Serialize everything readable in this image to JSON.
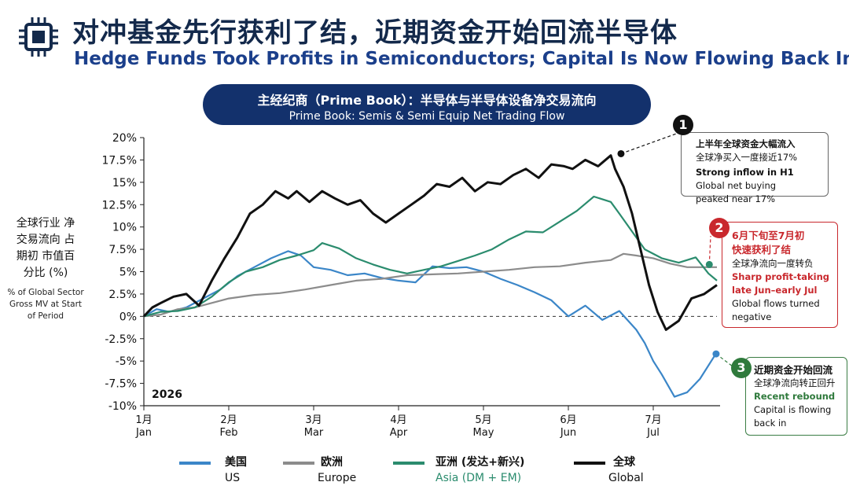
{
  "header": {
    "title_zh": "对冲基金先行获利了结，近期资金开始回流半导体",
    "title_en": "Hedge Funds Took Profits in Semiconductors; Capital Is Now Flowing Back In",
    "banner_zh": "主经纪商（Prime Book）：半导体与半导体设备净交易流向",
    "banner_en": "Prime Book: Semis & Semi Equip Net Trading Flow",
    "icon": "chip-icon"
  },
  "yaxis_label": {
    "zh": "全球行业 净交易流向 占期初 市值百分比 (%)",
    "en": "% of Global Sector Gross MV at Start of Period"
  },
  "annotations": {
    "a1": {
      "num": "1",
      "zh": "上半年全球资金大幅流入",
      "sub": "全球净买入一度接近17%",
      "en_head": "Strong inflow in H1",
      "en_1": "Global net buying",
      "en_2": "peaked near 17%"
    },
    "a2": {
      "num": "2",
      "zh_1": "6月下旬至7月初",
      "zh_2": "快速获利了结",
      "sub": "全球净流向一度转负",
      "en_head_1": "Sharp profit-taking",
      "en_head_2": "late Jun–early Jul",
      "en_1": "Global flows turned",
      "en_2": "negative"
    },
    "a3": {
      "num": "3",
      "zh": "近期资金开始回流",
      "sub": "全球净流向转正回升",
      "en_head": "Recent rebound",
      "en_1": "Capital is flowing",
      "en_2": "back in"
    }
  },
  "legend": [
    {
      "zh": "美国",
      "en": "US",
      "color": "#3b86c8"
    },
    {
      "zh": "欧洲",
      "en": "Europe",
      "color": "#8c8c8c"
    },
    {
      "zh": "亚洲 (发达+新兴)",
      "en": "Asia (DM + EM)",
      "color": "#2b8c6e"
    },
    {
      "zh": "全球",
      "en": "Global",
      "color": "#111111"
    }
  ],
  "chart_data": {
    "type": "line",
    "year_label": "2026",
    "x_month_labels": [
      {
        "zh": "1月",
        "en": "Jan",
        "month": 1
      },
      {
        "zh": "2月",
        "en": "Feb",
        "month": 2
      },
      {
        "zh": "3月",
        "en": "Mar",
        "month": 3
      },
      {
        "zh": "4月",
        "en": "Apr",
        "month": 4
      },
      {
        "zh": "5月",
        "en": "May",
        "month": 5
      },
      {
        "zh": "6月",
        "en": "Jun",
        "month": 6
      },
      {
        "zh": "7月",
        "en": "Jul",
        "month": 7
      }
    ],
    "xlim": [
      1,
      7.75
    ],
    "ylim": [
      -10,
      20
    ],
    "yticks": [
      -10,
      -7.5,
      -5,
      -2.5,
      0,
      2.5,
      5,
      7.5,
      10,
      12.5,
      15,
      17.5,
      20
    ],
    "ytick_labels": [
      "-10%",
      "-7.5%",
      "-5%",
      "-2.5%",
      "0%",
      "2.5%",
      "5%",
      "7.5%",
      "10%",
      "12.5%",
      "15%",
      "17.5%",
      "20%"
    ],
    "zero_line": "dashed",
    "series": [
      {
        "name": "US",
        "color": "#3b86c8",
        "x": [
          1.0,
          1.15,
          1.3,
          1.5,
          1.7,
          1.9,
          2.1,
          2.3,
          2.5,
          2.7,
          2.85,
          3.0,
          3.2,
          3.4,
          3.6,
          3.8,
          4.0,
          4.2,
          4.4,
          4.6,
          4.8,
          5.0,
          5.2,
          5.4,
          5.6,
          5.8,
          6.0,
          6.2,
          6.4,
          6.6,
          6.8,
          6.9,
          7.0,
          7.1,
          7.25,
          7.4,
          7.55,
          7.75
        ],
        "y": [
          0,
          0.8,
          0.5,
          1.0,
          2.0,
          3.0,
          4.5,
          5.5,
          6.5,
          7.3,
          6.8,
          5.5,
          5.2,
          4.6,
          4.8,
          4.3,
          4.0,
          3.8,
          5.6,
          5.4,
          5.5,
          5.0,
          4.2,
          3.5,
          2.7,
          1.8,
          0.0,
          1.2,
          -0.4,
          0.6,
          -1.5,
          -3.0,
          -5.0,
          -6.5,
          -9.0,
          -8.5,
          -7.0,
          -4.0
        ]
      },
      {
        "name": "Europe",
        "color": "#8c8c8c",
        "x": [
          1.0,
          1.2,
          1.4,
          1.6,
          1.8,
          2.0,
          2.3,
          2.6,
          2.9,
          3.2,
          3.5,
          3.8,
          4.1,
          4.4,
          4.7,
          5.0,
          5.3,
          5.6,
          5.9,
          6.2,
          6.5,
          6.65,
          6.8,
          7.0,
          7.2,
          7.4,
          7.6,
          7.75
        ],
        "y": [
          0,
          0.2,
          0.8,
          1.0,
          1.5,
          2.0,
          2.4,
          2.6,
          3.0,
          3.5,
          4.0,
          4.2,
          4.6,
          4.7,
          4.8,
          5.0,
          5.2,
          5.5,
          5.6,
          6.0,
          6.3,
          7.0,
          6.8,
          6.5,
          5.9,
          5.5,
          5.5,
          5.5
        ]
      },
      {
        "name": "Asia (DM + EM)",
        "color": "#2b8c6e",
        "x": [
          1.0,
          1.2,
          1.4,
          1.6,
          1.8,
          2.0,
          2.2,
          2.4,
          2.6,
          2.8,
          3.0,
          3.1,
          3.3,
          3.5,
          3.7,
          3.9,
          4.1,
          4.3,
          4.5,
          4.7,
          4.9,
          5.1,
          5.3,
          5.5,
          5.7,
          5.9,
          6.1,
          6.3,
          6.5,
          6.6,
          6.75,
          6.9,
          7.1,
          7.3,
          7.5,
          7.65,
          7.75
        ],
        "y": [
          0,
          0.5,
          0.6,
          1.0,
          2.2,
          3.8,
          5.0,
          5.5,
          6.3,
          6.8,
          7.4,
          8.2,
          7.6,
          6.5,
          5.8,
          5.2,
          4.8,
          5.2,
          5.6,
          6.2,
          6.8,
          7.5,
          8.6,
          9.5,
          9.4,
          10.6,
          11.8,
          13.4,
          12.8,
          11.5,
          9.5,
          7.5,
          6.5,
          6.0,
          6.6,
          4.8,
          4.0
        ]
      },
      {
        "name": "Global",
        "color": "#111111",
        "x": [
          1.0,
          1.1,
          1.2,
          1.35,
          1.5,
          1.65,
          1.8,
          1.95,
          2.1,
          2.25,
          2.4,
          2.55,
          2.7,
          2.8,
          2.95,
          3.1,
          3.25,
          3.4,
          3.55,
          3.7,
          3.85,
          4.0,
          4.15,
          4.3,
          4.45,
          4.6,
          4.75,
          4.9,
          5.05,
          5.2,
          5.35,
          5.5,
          5.65,
          5.8,
          5.95,
          6.05,
          6.2,
          6.35,
          6.5,
          6.55,
          6.65,
          6.75,
          6.85,
          6.95,
          7.05,
          7.15,
          7.3,
          7.45,
          7.6,
          7.75
        ],
        "y": [
          0,
          1.0,
          1.5,
          2.2,
          2.5,
          1.2,
          4.0,
          6.5,
          8.8,
          11.5,
          12.5,
          14.0,
          13.2,
          14.0,
          12.8,
          14.0,
          13.2,
          12.5,
          13.0,
          11.5,
          10.5,
          11.5,
          12.5,
          13.5,
          14.8,
          14.5,
          15.5,
          14.0,
          15.0,
          14.8,
          15.8,
          16.5,
          15.5,
          17.0,
          16.8,
          16.5,
          17.5,
          16.8,
          18.0,
          16.5,
          14.5,
          11.5,
          7.5,
          3.5,
          0.5,
          -1.5,
          -0.5,
          2.0,
          2.5,
          3.5
        ]
      }
    ],
    "markers": [
      {
        "series": "Global",
        "x": 6.62,
        "y": 18.2
      },
      {
        "series": "Asia (DM + EM)",
        "x": 7.66,
        "y": 5.8
      },
      {
        "series": "US",
        "x": 7.74,
        "y": -4.2
      }
    ]
  }
}
